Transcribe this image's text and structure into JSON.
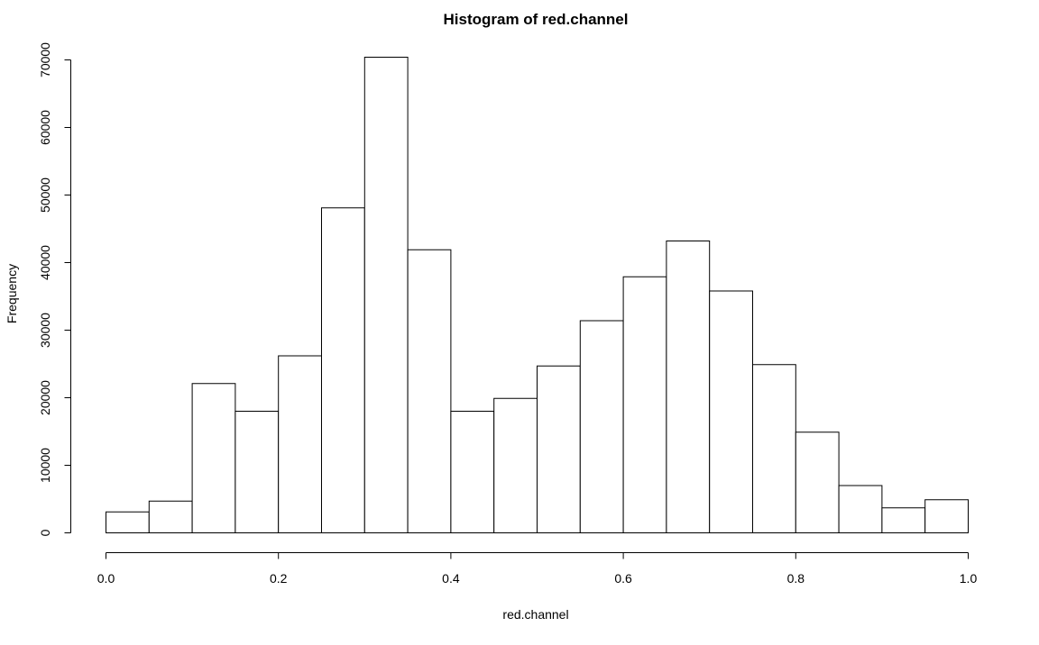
{
  "chart_data": {
    "type": "bar",
    "title": "Histogram of red.channel",
    "xlabel": "red.channel",
    "ylabel": "Frequency",
    "bin_edges": [
      0.0,
      0.05,
      0.1,
      0.15,
      0.2,
      0.25,
      0.3,
      0.35,
      0.4,
      0.45,
      0.5,
      0.55,
      0.6,
      0.65,
      0.7,
      0.75,
      0.8,
      0.85,
      0.9,
      0.95,
      1.0
    ],
    "values": [
      3100,
      4700,
      22100,
      18000,
      26200,
      48100,
      70400,
      41900,
      18000,
      19900,
      24700,
      31400,
      37900,
      43200,
      35800,
      24900,
      14900,
      7000,
      3700,
      4900
    ],
    "xlim": [
      0,
      1
    ],
    "ylim": [
      0,
      70000
    ],
    "x_ticks": [
      0.0,
      0.2,
      0.4,
      0.6,
      0.8,
      1.0
    ],
    "x_tick_labels": [
      "0.0",
      "0.2",
      "0.4",
      "0.6",
      "0.8",
      "1.0"
    ],
    "y_ticks": [
      0,
      10000,
      20000,
      30000,
      40000,
      50000,
      60000,
      70000
    ],
    "y_tick_labels": [
      "0",
      "10000",
      "20000",
      "30000",
      "40000",
      "50000",
      "60000",
      "70000"
    ],
    "grid": false,
    "legend": "none",
    "colors": {
      "bar_fill": "#ffffff",
      "bar_stroke": "#000000",
      "background": "#ffffff"
    }
  }
}
